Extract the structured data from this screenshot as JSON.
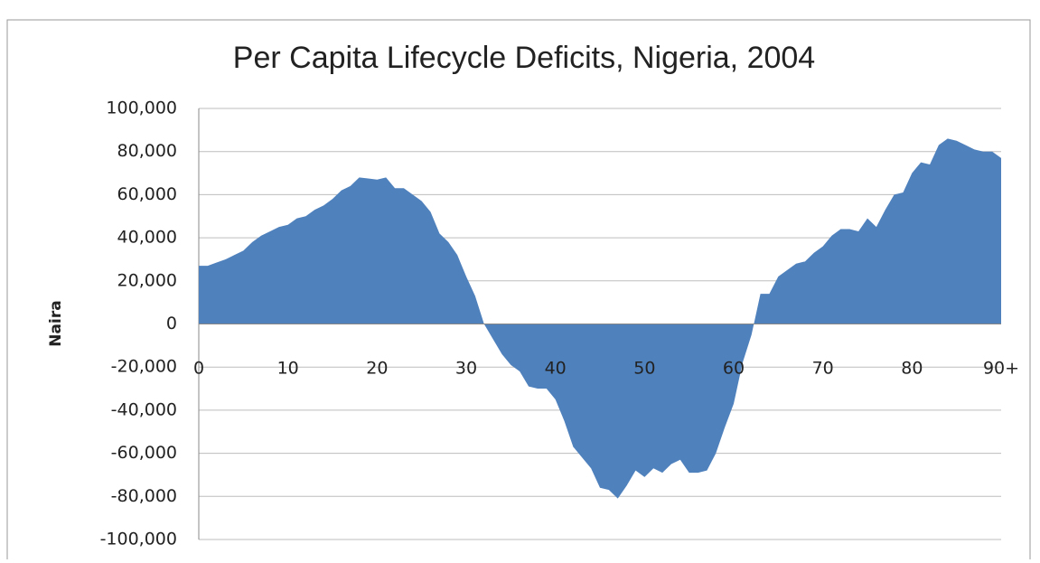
{
  "chart_data": {
    "type": "area",
    "title": "Per Capita Lifecycle Deficits, Nigeria, 2004",
    "y_label": "Naira",
    "categories": [
      0,
      null,
      null,
      null,
      null,
      null,
      null,
      null,
      null,
      null,
      10,
      null,
      null,
      null,
      null,
      null,
      null,
      null,
      null,
      null,
      20,
      null,
      null,
      null,
      null,
      null,
      null,
      null,
      null,
      null,
      30,
      null,
      null,
      null,
      null,
      null,
      null,
      null,
      null,
      null,
      40,
      null,
      null,
      null,
      null,
      null,
      null,
      null,
      null,
      null,
      50,
      null,
      null,
      null,
      null,
      null,
      null,
      null,
      null,
      null,
      60,
      null,
      null,
      null,
      null,
      null,
      null,
      null,
      null,
      null,
      70,
      null,
      null,
      null,
      null,
      null,
      null,
      null,
      null,
      null,
      80,
      null,
      null,
      null,
      null,
      null,
      null,
      null,
      null,
      null,
      "90+"
    ],
    "values": [
      27000,
      27000,
      28500,
      30000,
      32000,
      34000,
      38000,
      41000,
      43000,
      45000,
      46000,
      49000,
      50000,
      53000,
      55000,
      58000,
      62000,
      64000,
      68000,
      67500,
      67000,
      68000,
      63000,
      63000,
      60000,
      57000,
      52000,
      42000,
      38000,
      32000,
      22000,
      13000,
      0,
      -7000,
      -14000,
      -19000,
      -22000,
      -29000,
      -30000,
      -30000,
      -35000,
      -45000,
      -57000,
      -62000,
      -67000,
      -76000,
      -77000,
      -81000,
      -75000,
      -68000,
      -71000,
      -67000,
      -69000,
      -65000,
      -63000,
      -69000,
      -69000,
      -68000,
      -60000,
      -48000,
      -37000,
      -18000,
      -5000,
      14000,
      14000,
      22000,
      25000,
      28000,
      29000,
      33000,
      36000,
      41000,
      44000,
      44000,
      43000,
      49000,
      45000,
      53000,
      60000,
      61000,
      70000,
      75000,
      74000,
      83000,
      86000,
      85000,
      83000,
      81000,
      80000,
      80000,
      77000
    ],
    "color": "#4f81bd",
    "ylim": [
      -100000,
      100000
    ],
    "yticks": [
      {
        "value": -100000,
        "label": "-100,000"
      },
      {
        "value": -80000,
        "label": "-80,000"
      },
      {
        "value": -60000,
        "label": "-60,000"
      },
      {
        "value": -40000,
        "label": "-40,000"
      },
      {
        "value": -20000,
        "label": "-20,000"
      },
      0,
      {
        "value": 20000,
        "label": "20,000"
      },
      {
        "value": 40000,
        "label": "40,000"
      },
      {
        "value": 60000,
        "label": "60,000"
      },
      {
        "value": 80000,
        "label": "80,000"
      },
      {
        "value": 100000,
        "label": "100,000"
      }
    ],
    "grid": true
  }
}
